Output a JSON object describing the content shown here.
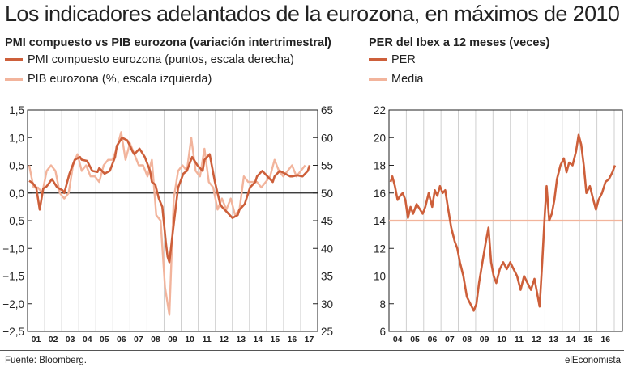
{
  "header": {
    "title": "Los indicadores adelantados de la eurozona, en máximos de 2010"
  },
  "footer": {
    "source": "Fuente: Bloomberg.",
    "brand": "elEconomista"
  },
  "colors": {
    "dark": "#cd5f3a",
    "light": "#f2b49c",
    "grid": "#cfcfcf",
    "axis": "#222222"
  },
  "chart_data": [
    {
      "type": "line",
      "title": "PMI compuesto vs PIB eurozona (variación intertrimestral)",
      "categories": [
        "01",
        "02",
        "03",
        "04",
        "05",
        "06",
        "07",
        "08",
        "09",
        "10",
        "11",
        "12",
        "13",
        "14",
        "15",
        "16",
        "17"
      ],
      "y_left": {
        "range": [
          -2.5,
          1.5
        ],
        "ticks": [
          "1,5",
          "1,0",
          "0,5",
          "0,0",
          "−0,5",
          "−1,0",
          "−1,5",
          "−2,0",
          "−2,5"
        ]
      },
      "y_right": {
        "range": [
          25,
          65
        ],
        "ticks": [
          "65",
          "60",
          "55",
          "50",
          "45",
          "40",
          "35",
          "30",
          "25"
        ]
      },
      "series": [
        {
          "name": "PMI compuesto eurozona (puntos, escala derecha)",
          "axis": "right",
          "x": [
            2001.0,
            2001.2,
            2001.4,
            2001.6,
            2001.8,
            2002.0,
            2002.3,
            2002.6,
            2002.9,
            2003.0,
            2003.3,
            2003.6,
            2003.9,
            2004.0,
            2004.3,
            2004.6,
            2004.9,
            2005.0,
            2005.3,
            2005.6,
            2005.9,
            2006.0,
            2006.3,
            2006.6,
            2006.9,
            2007.0,
            2007.3,
            2007.6,
            2007.9,
            2008.0,
            2008.2,
            2008.4,
            2008.6,
            2008.8,
            2008.9,
            2009.0,
            2009.2,
            2009.5,
            2009.8,
            2010.0,
            2010.3,
            2010.6,
            2010.9,
            2011.0,
            2011.3,
            2011.6,
            2011.9,
            2012.0,
            2012.3,
            2012.6,
            2012.9,
            2013.0,
            2013.3,
            2013.6,
            2013.9,
            2014.0,
            2014.3,
            2014.6,
            2014.9,
            2015.0,
            2015.3,
            2015.6,
            2015.9,
            2016.0,
            2016.3,
            2016.6,
            2016.9,
            2017.0
          ],
          "values": [
            52.2,
            51.8,
            51.0,
            47.0,
            50.8,
            51.2,
            52.5,
            51.0,
            50.5,
            50.0,
            53.5,
            56.0,
            56.5,
            56.0,
            55.8,
            54.0,
            53.8,
            54.5,
            53.5,
            54.0,
            56.5,
            58.5,
            60.0,
            59.5,
            57.5,
            57.0,
            58.0,
            56.5,
            54.0,
            52.0,
            51.5,
            49.0,
            47.5,
            41.0,
            38.5,
            37.5,
            43.0,
            51.0,
            53.5,
            54.0,
            56.5,
            55.0,
            54.0,
            56.0,
            57.0,
            52.0,
            48.0,
            47.5,
            46.5,
            45.5,
            46.0,
            47.0,
            48.0,
            51.0,
            52.0,
            53.0,
            54.0,
            53.0,
            52.0,
            53.0,
            54.0,
            53.5,
            53.0,
            53.0,
            53.2,
            53.0,
            54.0,
            55.0
          ]
        },
        {
          "name": "PIB eurozona (%, escala izquierda)",
          "axis": "left",
          "x": [
            2001.0,
            2001.25,
            2001.5,
            2001.75,
            2002.0,
            2002.25,
            2002.5,
            2002.75,
            2003.0,
            2003.25,
            2003.5,
            2003.75,
            2004.0,
            2004.25,
            2004.5,
            2004.75,
            2005.0,
            2005.25,
            2005.5,
            2005.75,
            2006.0,
            2006.25,
            2006.5,
            2006.75,
            2007.0,
            2007.25,
            2007.5,
            2007.75,
            2008.0,
            2008.25,
            2008.5,
            2008.75,
            2009.0,
            2009.25,
            2009.5,
            2009.75,
            2010.0,
            2010.25,
            2010.5,
            2010.75,
            2011.0,
            2011.25,
            2011.5,
            2011.75,
            2012.0,
            2012.25,
            2012.5,
            2012.75,
            2013.0,
            2013.25,
            2013.5,
            2013.75,
            2014.0,
            2014.25,
            2014.5,
            2014.75,
            2015.0,
            2015.25,
            2015.5,
            2015.75,
            2016.0,
            2016.25,
            2016.5,
            2016.75
          ],
          "values": [
            0.5,
            0.1,
            0.1,
            0.0,
            0.4,
            0.5,
            0.4,
            0.0,
            -0.1,
            0.0,
            0.5,
            0.7,
            0.4,
            0.5,
            0.3,
            0.3,
            0.2,
            0.5,
            0.6,
            0.6,
            0.8,
            1.1,
            0.6,
            0.9,
            0.7,
            0.5,
            0.5,
            0.3,
            0.6,
            -0.4,
            -0.5,
            -1.7,
            -2.2,
            -0.1,
            0.4,
            0.5,
            0.4,
            1.0,
            0.4,
            0.3,
            0.8,
            0.2,
            0.1,
            -0.3,
            -0.1,
            -0.3,
            -0.1,
            -0.4,
            -0.3,
            0.3,
            0.2,
            0.2,
            0.2,
            0.1,
            0.2,
            0.3,
            0.6,
            0.4,
            0.3,
            0.4,
            0.5,
            0.3,
            0.4,
            0.5
          ]
        }
      ]
    },
    {
      "type": "line",
      "title": "PER del Ibex a 12 meses (veces)",
      "categories": [
        "04",
        "05",
        "06",
        "07",
        "08",
        "09",
        "10",
        "11",
        "12",
        "13",
        "14",
        "15",
        "16"
      ],
      "y": {
        "range": [
          6,
          22
        ],
        "ticks": [
          "22",
          "20",
          "18",
          "16",
          "14",
          "12",
          "10",
          "8",
          "6"
        ]
      },
      "series": [
        {
          "name": "PER",
          "x": [
            2004.0,
            2004.1,
            2004.25,
            2004.4,
            2004.55,
            2004.7,
            2004.85,
            2005.0,
            2005.15,
            2005.3,
            2005.5,
            2005.7,
            2005.85,
            2006.0,
            2006.2,
            2006.4,
            2006.55,
            2006.7,
            2006.85,
            2007.0,
            2007.15,
            2007.3,
            2007.5,
            2007.7,
            2007.85,
            2008.0,
            2008.2,
            2008.4,
            2008.6,
            2008.8,
            2008.95,
            2009.1,
            2009.3,
            2009.5,
            2009.65,
            2009.8,
            2009.95,
            2010.1,
            2010.3,
            2010.5,
            2010.7,
            2010.9,
            2011.1,
            2011.3,
            2011.5,
            2011.7,
            2011.9,
            2012.1,
            2012.3,
            2012.45,
            2012.6,
            2012.75,
            2012.9,
            2013.0,
            2013.15,
            2013.3,
            2013.45,
            2013.6,
            2013.8,
            2014.0,
            2014.15,
            2014.3,
            2014.5,
            2014.7,
            2014.85,
            2015.0,
            2015.15,
            2015.3,
            2015.5,
            2015.7,
            2015.85,
            2016.0,
            2016.2,
            2016.4,
            2016.6,
            2016.8,
            2016.95
          ],
          "values": [
            16.8,
            17.2,
            16.5,
            15.5,
            15.8,
            16.0,
            15.5,
            14.2,
            15.0,
            14.5,
            15.2,
            14.8,
            14.5,
            15.0,
            16.0,
            15.0,
            16.2,
            15.8,
            16.5,
            16.0,
            16.2,
            15.0,
            13.5,
            12.5,
            12.0,
            11.0,
            10.0,
            8.5,
            8.0,
            7.5,
            8.0,
            9.5,
            11.0,
            12.5,
            13.5,
            11.0,
            10.0,
            9.5,
            10.5,
            11.0,
            10.5,
            11.0,
            10.5,
            10.0,
            9.0,
            10.0,
            9.5,
            9.0,
            9.8,
            8.8,
            7.8,
            11.0,
            14.5,
            16.5,
            14.0,
            14.5,
            15.5,
            17.0,
            18.0,
            18.5,
            17.5,
            18.2,
            18.0,
            19.0,
            20.2,
            19.5,
            18.0,
            16.0,
            16.5,
            15.5,
            14.8,
            15.5,
            16.0,
            16.8,
            17.0,
            17.5,
            18.0
          ]
        },
        {
          "name": "Media",
          "x": [
            2004.0,
            2016.95
          ],
          "values": [
            14.0,
            14.0
          ]
        }
      ]
    }
  ]
}
